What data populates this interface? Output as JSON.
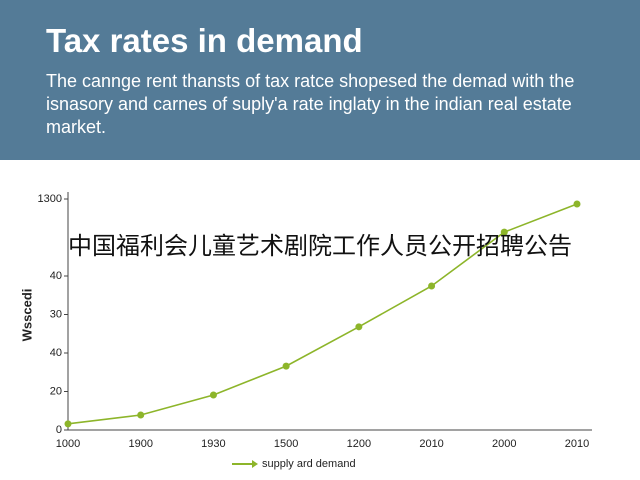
{
  "header": {
    "title": "Tax rates in demand",
    "subtitle": "The cannge rent thansts of tax ratce shopesed the demad with the isnasory and carnes of suply'a rate inglaty in the indian real estate market."
  },
  "overlay_text": "中国福利会儿童艺术剧院工作人员公开招聘公告",
  "chart_data": {
    "type": "line",
    "y_label": "Wsscedi",
    "categories": [
      "1000",
      "1900",
      "1930",
      "1500",
      "1200",
      "2010",
      "2000",
      "2010"
    ],
    "series": [
      {
        "name": "supply ard demand",
        "color": "#8db52a",
        "values": [
          1.6,
          3.9,
          9.1,
          16.6,
          26.8,
          37.4,
          51.4,
          58.7
        ]
      }
    ],
    "ylim": [
      0,
      60
    ],
    "yticks": [
      0,
      {
        "value": 10,
        "label": "20"
      },
      {
        "value": 20,
        "label": "40"
      },
      30,
      {
        "value": 40,
        "label": "40"
      },
      {
        "value": 60,
        "label": "1300"
      }
    ],
    "grid": false
  }
}
